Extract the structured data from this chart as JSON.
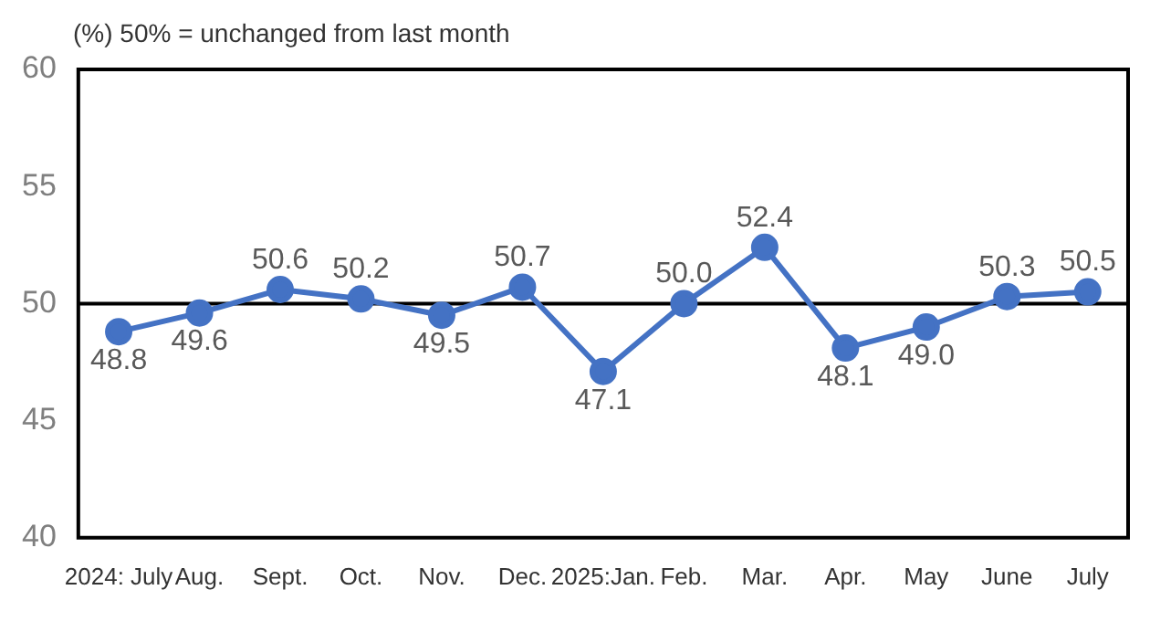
{
  "chart_data": {
    "type": "line",
    "title": "(%) 50% = unchanged from last month",
    "categories": [
      "2024: July",
      "Aug.",
      "Sept.",
      "Oct.",
      "Nov.",
      "Dec.",
      "2025:Jan.",
      "Feb.",
      "Mar.",
      "Apr.",
      "May",
      "June",
      "July"
    ],
    "series": [
      {
        "color": "#4472c4",
        "values": [
          48.8,
          49.6,
          50.6,
          50.2,
          49.5,
          50.7,
          47.1,
          50,
          52.4,
          48.1,
          49,
          50.3,
          50.5
        ],
        "value_labels": [
          "48.8",
          "49.6",
          "50.6",
          "50.2",
          "49.5",
          "50.7",
          "47.1",
          "50.0",
          "52.4",
          "48.1",
          "49.0",
          "50.3",
          "50.5"
        ]
      }
    ],
    "ylim": [
      40,
      60
    ],
    "yticks": [
      40,
      45,
      50,
      55,
      60
    ],
    "grid": false,
    "legend": false,
    "marker": "circle",
    "line_style": "solid",
    "ref_lines": [
      {
        "axis": "y",
        "value": 50,
        "color": "#000000"
      }
    ]
  }
}
